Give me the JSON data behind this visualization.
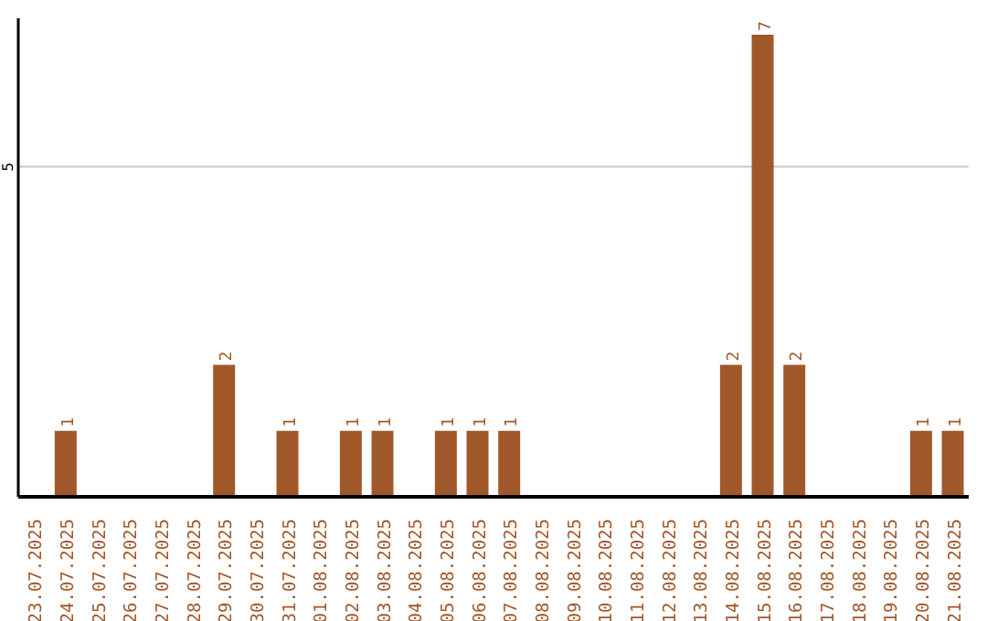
{
  "chart_data": {
    "type": "bar",
    "categories": [
      "23.07.2025",
      "24.07.2025",
      "25.07.2025",
      "26.07.2025",
      "27.07.2025",
      "28.07.2025",
      "29.07.2025",
      "30.07.2025",
      "31.07.2025",
      "01.08.2025",
      "02.08.2025",
      "03.08.2025",
      "04.08.2025",
      "05.08.2025",
      "06.08.2025",
      "07.08.2025",
      "08.08.2025",
      "09.08.2025",
      "10.08.2025",
      "11.08.2025",
      "12.08.2025",
      "13.08.2025",
      "14.08.2025",
      "15.08.2025",
      "16.08.2025",
      "17.08.2025",
      "18.08.2025",
      "19.08.2025",
      "20.08.2025",
      "21.08.2025"
    ],
    "values": [
      0,
      1,
      0,
      0,
      0,
      0,
      2,
      0,
      1,
      0,
      1,
      1,
      0,
      1,
      1,
      1,
      0,
      0,
      0,
      0,
      0,
      0,
      2,
      7,
      2,
      0,
      0,
      0,
      1,
      1
    ],
    "value_labels": [
      null,
      "1",
      null,
      null,
      null,
      null,
      "2",
      null,
      "1",
      null,
      "1",
      "1",
      null,
      "1",
      "1",
      "1",
      null,
      null,
      null,
      null,
      null,
      null,
      "2",
      "7",
      "2",
      null,
      null,
      null,
      "1",
      "1"
    ],
    "color": "#a0582a",
    "ylim": [
      0,
      7.25
    ],
    "yticks": [
      5
    ],
    "grid": "y"
  }
}
